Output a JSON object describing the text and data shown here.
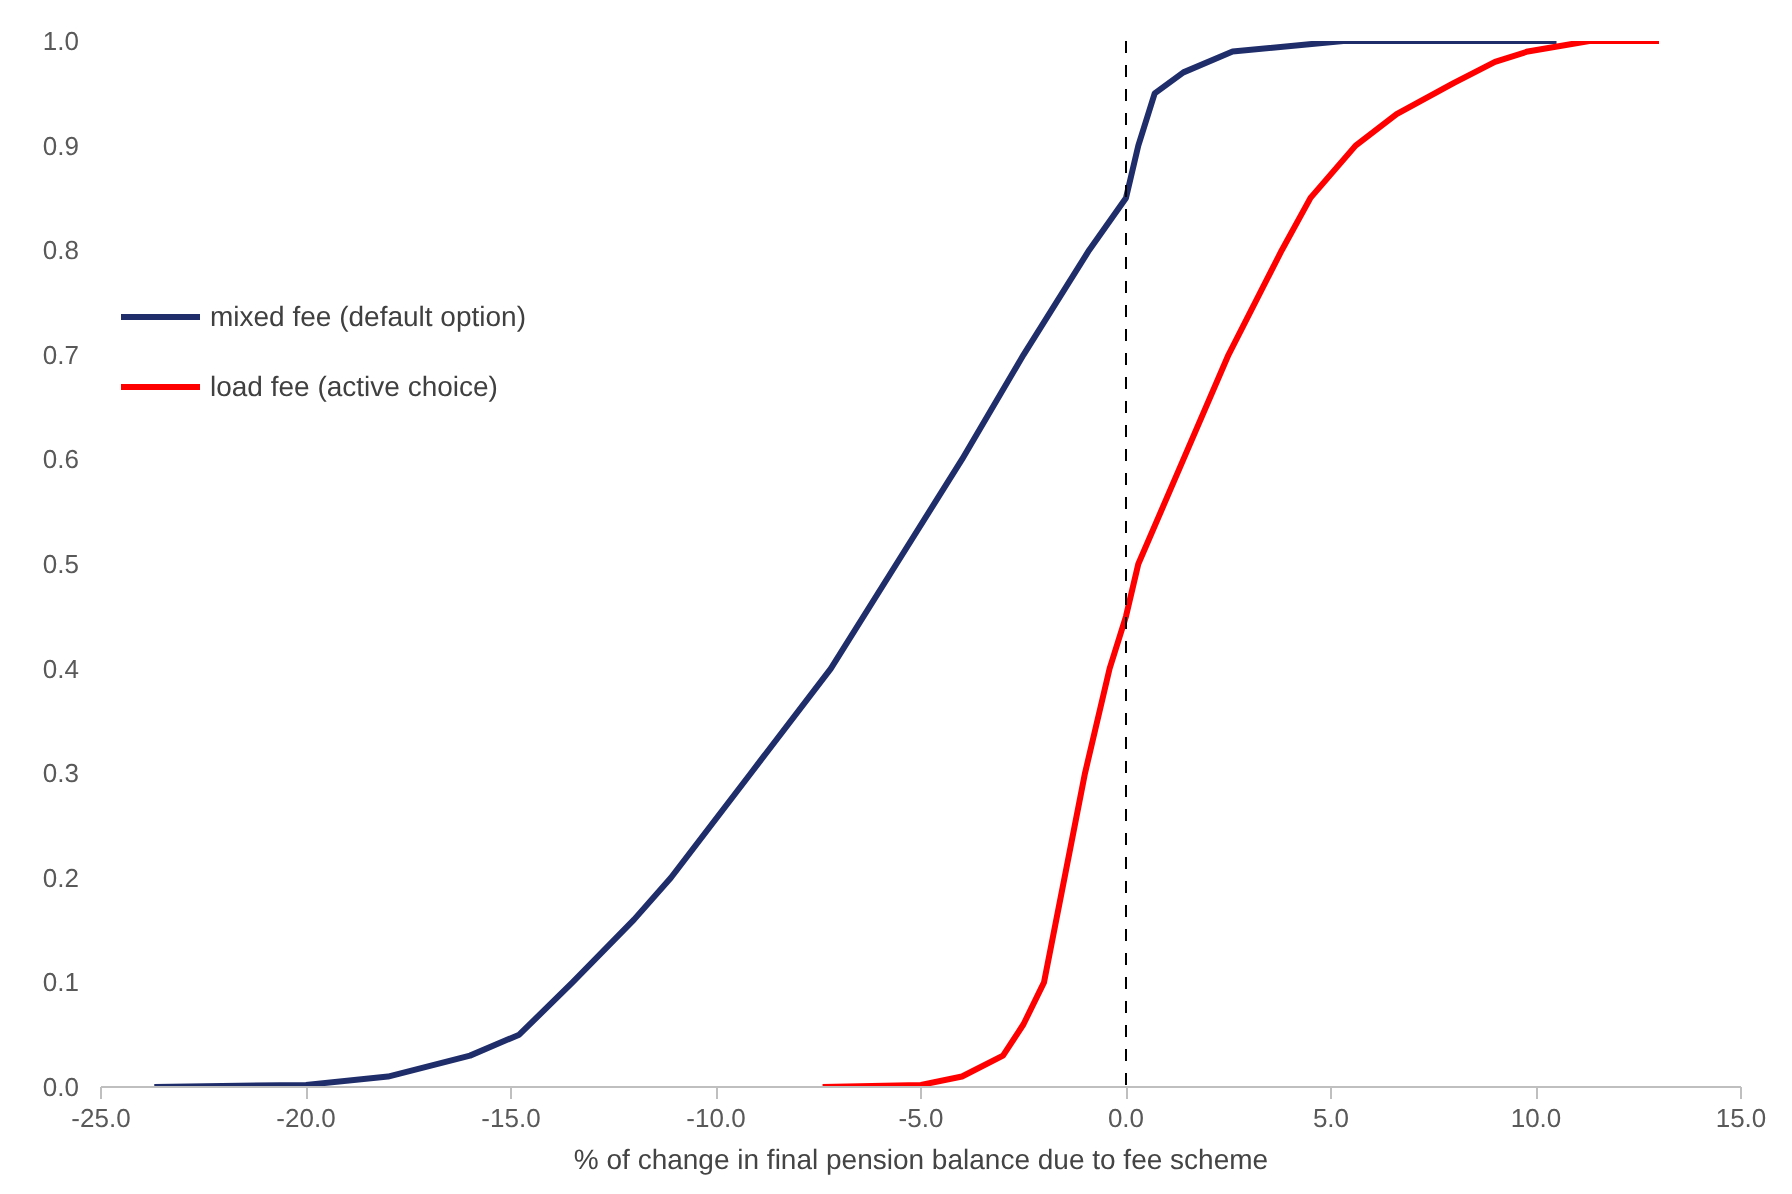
{
  "chart_data": {
    "type": "line",
    "xlabel": "% of change in final pension balance due to fee scheme",
    "xlim": [
      -25,
      15
    ],
    "ylim": [
      0,
      1
    ],
    "xticks": [
      {
        "value": -25,
        "label": "-25.0"
      },
      {
        "value": -20,
        "label": "-20.0"
      },
      {
        "value": -15,
        "label": "-15.0"
      },
      {
        "value": -10,
        "label": "-10.0"
      },
      {
        "value": -5,
        "label": "-5.0"
      },
      {
        "value": 0,
        "label": "0.0"
      },
      {
        "value": 5,
        "label": "5.0"
      },
      {
        "value": 10,
        "label": "10.0"
      },
      {
        "value": 15,
        "label": "15.0"
      }
    ],
    "yticks": [
      {
        "value": 0,
        "label": "0.0"
      },
      {
        "value": 0.1,
        "label": "0.1"
      },
      {
        "value": 0.2,
        "label": "0.2"
      },
      {
        "value": 0.3,
        "label": "0.3"
      },
      {
        "value": 0.4,
        "label": "0.4"
      },
      {
        "value": 0.5,
        "label": "0.5"
      },
      {
        "value": 0.6,
        "label": "0.6"
      },
      {
        "value": 0.7,
        "label": "0.7"
      },
      {
        "value": 0.8,
        "label": "0.8"
      },
      {
        "value": 0.9,
        "label": "0.9"
      },
      {
        "value": 1,
        "label": "1.0"
      }
    ],
    "series": [
      {
        "name": "mixed fee (default option)",
        "color": "#1f2d6b",
        "x": [
          -23.7,
          -20,
          -18,
          -16,
          -14.8,
          -13.5,
          -12,
          -11.1,
          -9.15,
          -7.2,
          -5.6,
          -4.0,
          -2.5,
          -0.9,
          0,
          0.3,
          0.7,
          1.4,
          2.6,
          5.3,
          10.5
        ],
        "values": [
          0,
          0.002,
          0.01,
          0.03,
          0.05,
          0.1,
          0.16,
          0.2,
          0.3,
          0.4,
          0.5,
          0.6,
          0.7,
          0.8,
          0.85,
          0.9,
          0.95,
          0.97,
          0.99,
          1.0,
          1.0
        ]
      },
      {
        "name": "load fee (active choice)",
        "color": "#ff0000",
        "x": [
          -7.4,
          -5,
          -4,
          -3,
          -2.5,
          -2.0,
          -1.5,
          -1.0,
          -0.4,
          0,
          0.3,
          1.4,
          2.5,
          3.8,
          4.5,
          5.6,
          6.6,
          8.0,
          9.0,
          9.8,
          11.3,
          13.0
        ],
        "values": [
          0,
          0.002,
          0.01,
          0.03,
          0.06,
          0.1,
          0.2,
          0.3,
          0.4,
          0.45,
          0.5,
          0.6,
          0.7,
          0.8,
          0.85,
          0.9,
          0.93,
          0.96,
          0.98,
          0.99,
          1.0,
          1.0
        ]
      }
    ],
    "ref_lines": [
      {
        "axis": "x",
        "value": 0,
        "color": "#000000",
        "line_style": "dashed"
      }
    ],
    "grid": false,
    "legend": "top left",
    "line_style": "solid",
    "marker": "none"
  }
}
